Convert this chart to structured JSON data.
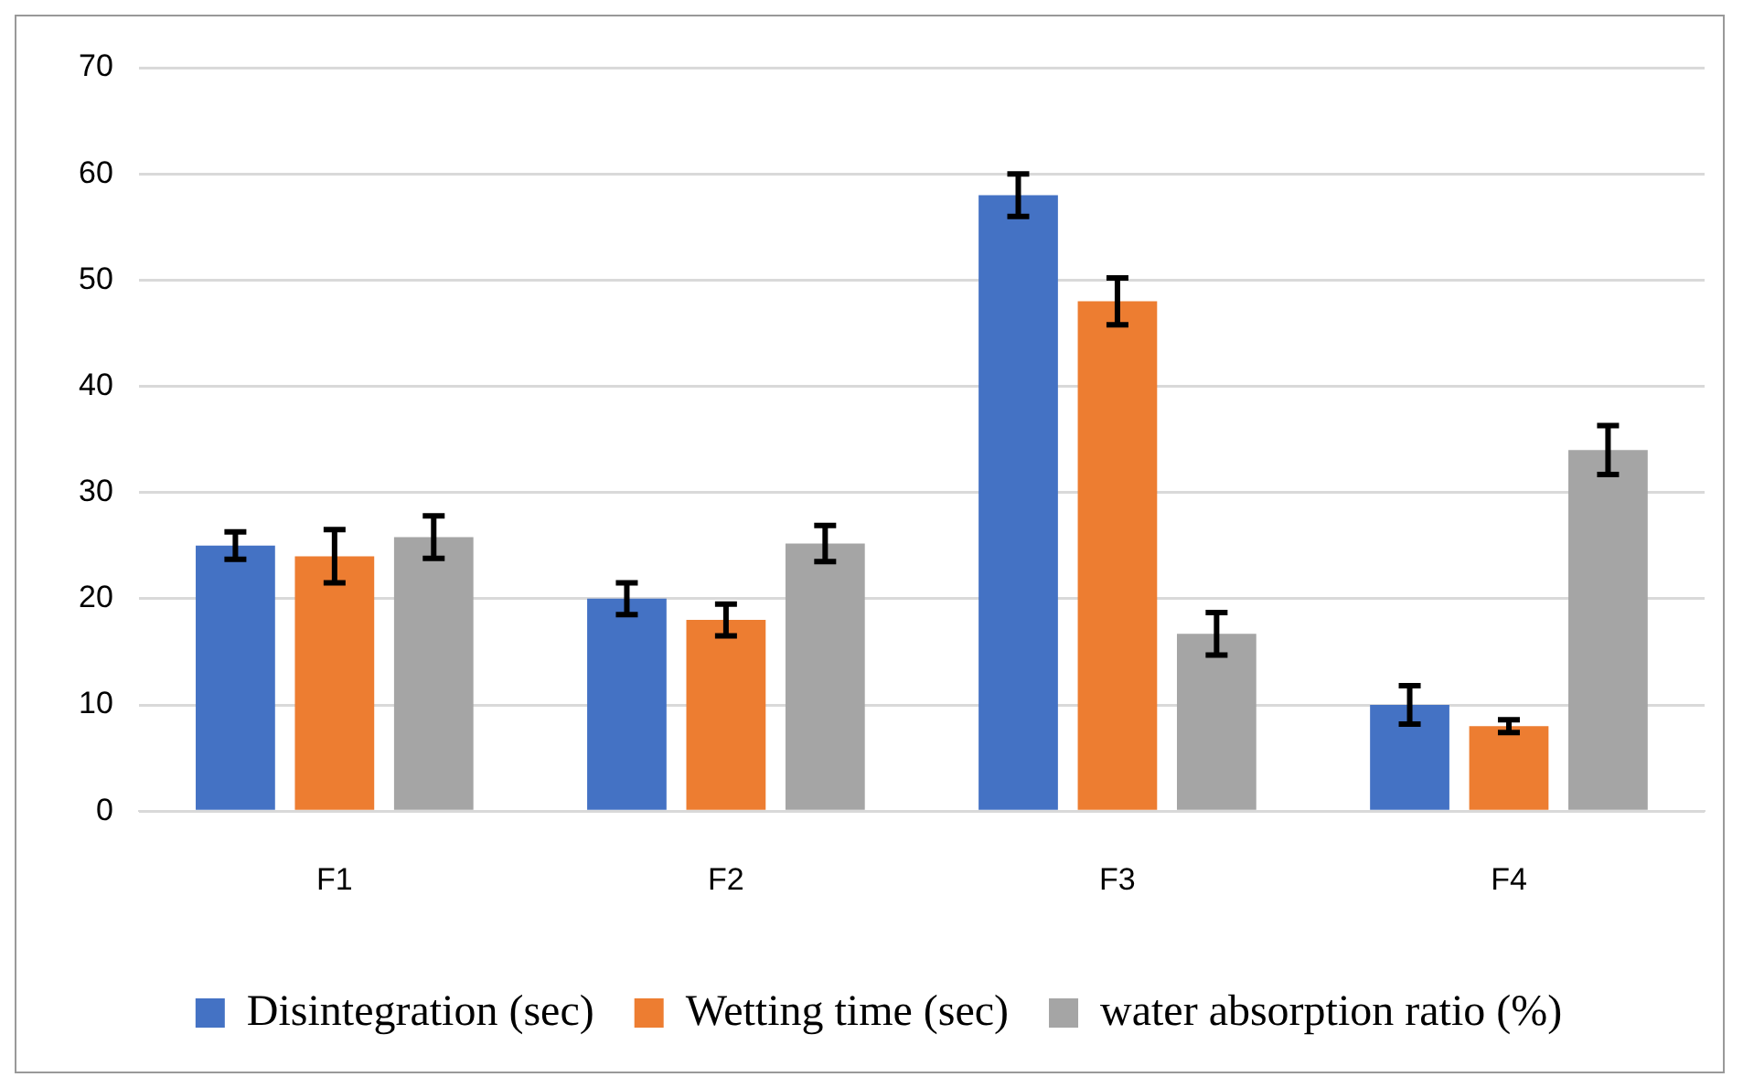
{
  "chart_data": {
    "type": "bar",
    "categories": [
      "F1",
      "F2",
      "F3",
      "F4"
    ],
    "series": [
      {
        "name": "Disintegration (sec)",
        "color": "#4472c4",
        "values": [
          25,
          20,
          58,
          10
        ],
        "errors": [
          1.3,
          1.5,
          2,
          1.8
        ]
      },
      {
        "name": "Wetting time (sec)",
        "color": "#ed7d31",
        "values": [
          24,
          18,
          48,
          8
        ],
        "errors": [
          2.5,
          1.5,
          2.2,
          0.6
        ]
      },
      {
        "name": "water absorption ratio (%)",
        "color": "#a5a5a5",
        "values": [
          25.8,
          25.2,
          16.7,
          34
        ],
        "errors": [
          2,
          1.7,
          2,
          2.3
        ]
      }
    ],
    "ylim": [
      0,
      70
    ],
    "yticks": [
      0,
      10,
      20,
      30,
      40,
      50,
      60,
      70
    ],
    "grid": "y",
    "legend": "bottom"
  }
}
